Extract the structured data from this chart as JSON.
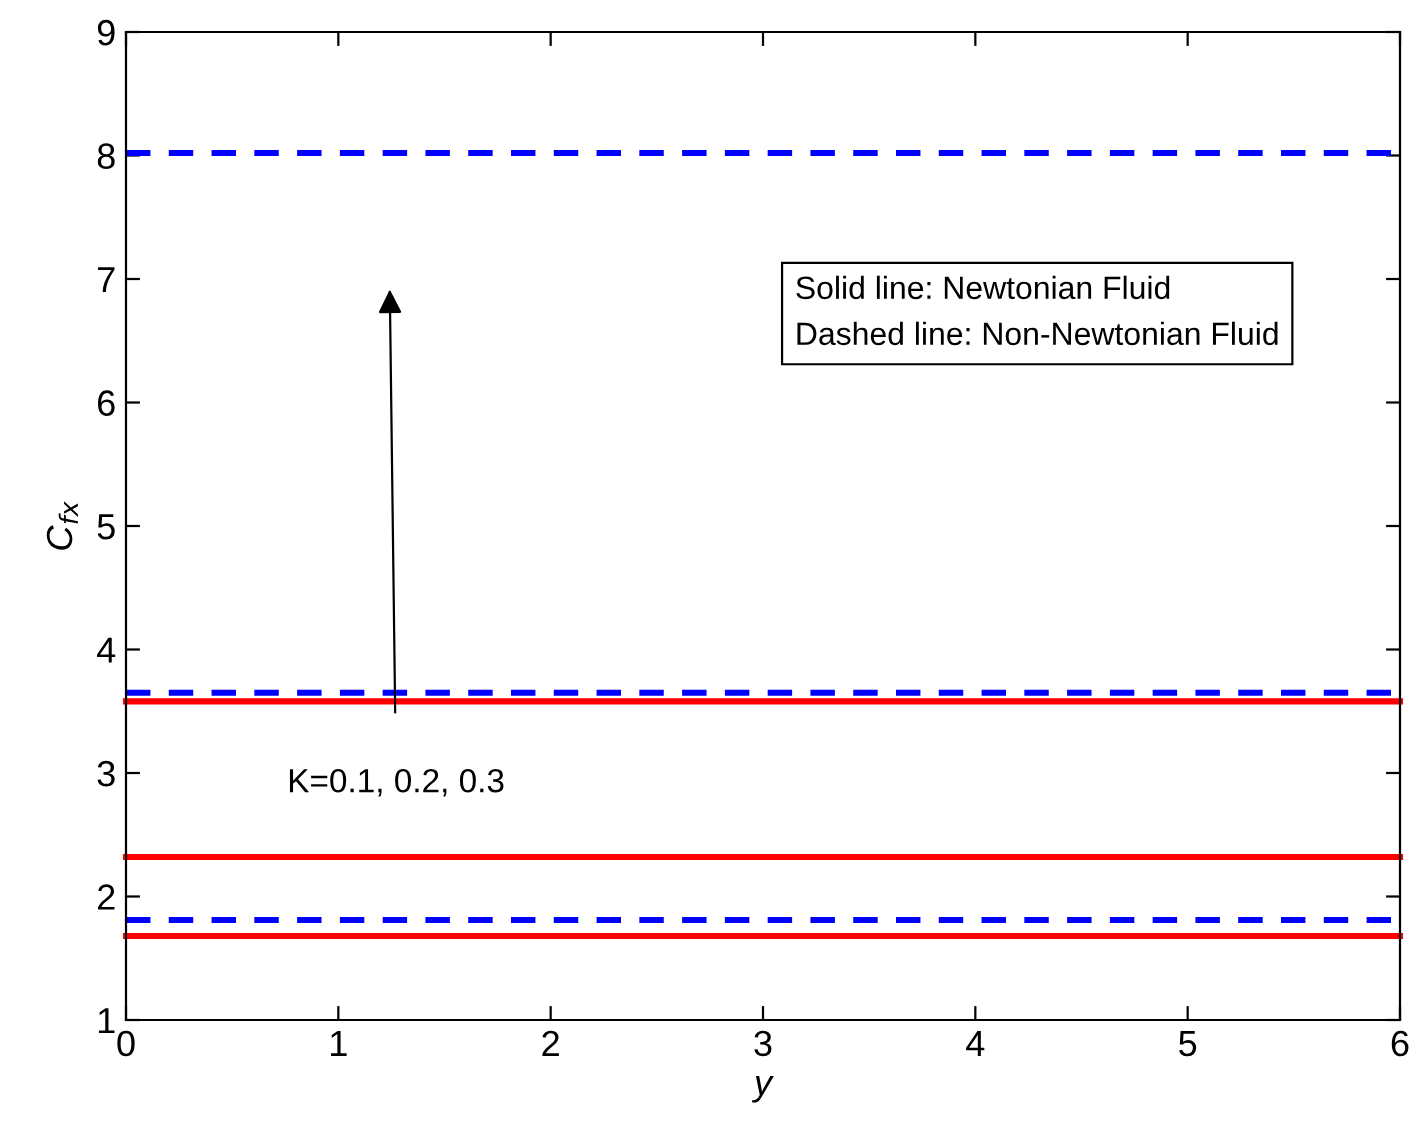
{
  "chart_data": {
    "type": "line",
    "xlabel": "y",
    "ylabel": "C$_{fx}$",
    "xlim": [
      0,
      6
    ],
    "ylim": [
      1,
      9
    ],
    "xticks": [
      0,
      1,
      2,
      3,
      4,
      5,
      6
    ],
    "yticks": [
      1,
      2,
      3,
      4,
      5,
      6,
      7,
      8,
      9
    ],
    "x": [
      0,
      6
    ],
    "grid": false,
    "legend": false,
    "marker": "none",
    "series": [
      {
        "color": "#ff0000",
        "line_style": "solid",
        "values": [
          1.68,
          1.68
        ]
      },
      {
        "color": "#ff0000",
        "line_style": "solid",
        "values": [
          2.32,
          2.32
        ]
      },
      {
        "color": "#ff0000",
        "line_style": "solid",
        "values": [
          3.58,
          3.58
        ]
      },
      {
        "color": "#0000ff",
        "line_style": "dashed",
        "values": [
          1.81,
          1.81
        ]
      },
      {
        "color": "#0000ff",
        "line_style": "dashed",
        "values": [
          3.65,
          3.65
        ]
      },
      {
        "color": "#0000ff",
        "line_style": "dashed",
        "values": [
          8.02,
          8.02
        ]
      }
    ],
    "annotations": [
      "K=0.1, 0.2, 0.3",
      "Solid line: Newtonian Fluid\nDashed line: Non-Newtonian Fluid"
    ]
  }
}
